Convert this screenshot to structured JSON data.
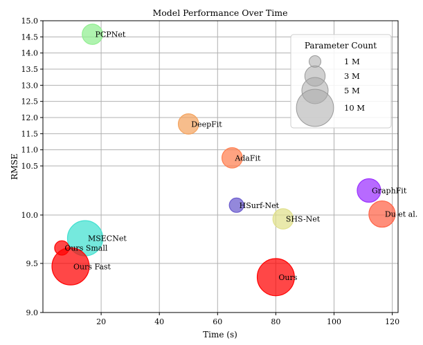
{
  "chart_data": {
    "type": "scatter",
    "title": "Model Performance Over Time",
    "xlabel": "Time (s)",
    "ylabel": "RMSE",
    "xlim": [
      0,
      122
    ],
    "xticks": [
      20,
      40,
      60,
      80,
      100,
      120
    ],
    "yticks": [
      9.0,
      9.5,
      10.0,
      10.5,
      11.0,
      11.5,
      12.0,
      12.5,
      13.0,
      13.5,
      14.0,
      14.5,
      15.0
    ],
    "ytick_labels": [
      "9.0",
      "9.5",
      "10.0",
      "10.5",
      "11.0",
      "11.5",
      "12.0",
      "12.5",
      "13.0",
      "13.5",
      "14.0",
      "14.5",
      "15.0"
    ],
    "y_scale": "piecewise: 9.0-10.0 expanded, 10.5-15.0 compressed",
    "grid": true,
    "points": [
      {
        "label": "PCPNet",
        "x": 17,
        "y": 14.58,
        "params_m": 3,
        "color": "#90ee90"
      },
      {
        "label": "DeepFit",
        "x": 50,
        "y": 11.8,
        "params_m": 3,
        "color": "#f4a460"
      },
      {
        "label": "AdaFit",
        "x": 65,
        "y": 10.75,
        "params_m": 3,
        "color": "#ff7f50"
      },
      {
        "label": "HSurf-Net",
        "x": 66.5,
        "y": 10.1,
        "params_m": 1.5,
        "color": "#6a5acd"
      },
      {
        "label": "SHS-Net",
        "x": 82.5,
        "y": 9.96,
        "params_m": 3,
        "color": "#e0e08c"
      },
      {
        "label": "GraphFit",
        "x": 112,
        "y": 10.25,
        "params_m": 4,
        "color": "#9b30ff"
      },
      {
        "label": "Du et al.",
        "x": 116.5,
        "y": 10.01,
        "params_m": 5,
        "color": "#ff6347"
      },
      {
        "label": "MSECNet",
        "x": 14.5,
        "y": 9.76,
        "params_m": 9,
        "color": "#40e0d0"
      },
      {
        "label": "Ours Small",
        "x": 6.5,
        "y": 9.66,
        "params_m": 1.5,
        "color": "#ff0000"
      },
      {
        "label": "Ours Fast",
        "x": 9.5,
        "y": 9.47,
        "params_m": 10,
        "color": "#ff0000"
      },
      {
        "label": "Ours",
        "x": 80,
        "y": 9.36,
        "params_m": 10,
        "color": "#ff0000"
      }
    ],
    "legend": {
      "title": "Parameter Count",
      "placement": "top-right",
      "entries": [
        {
          "label": "1 M",
          "params_m": 1
        },
        {
          "label": "3 M",
          "params_m": 3
        },
        {
          "label": "5 M",
          "params_m": 5
        },
        {
          "label": "10 M",
          "params_m": 10
        }
      ]
    }
  }
}
